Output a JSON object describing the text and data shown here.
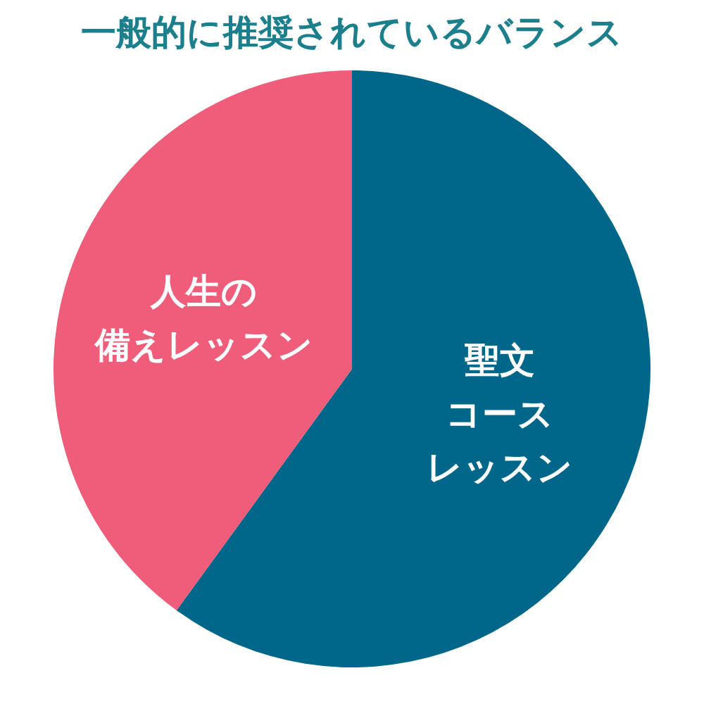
{
  "chart_data": {
    "type": "pie",
    "title": "一般的に推奨されているバランス",
    "categories": [
      "聖文コースレッスン",
      "人生の備えレッスン"
    ],
    "values": [
      60,
      40
    ],
    "colors": [
      "#00668a",
      "#ef5d7a"
    ],
    "legend": false
  }
}
